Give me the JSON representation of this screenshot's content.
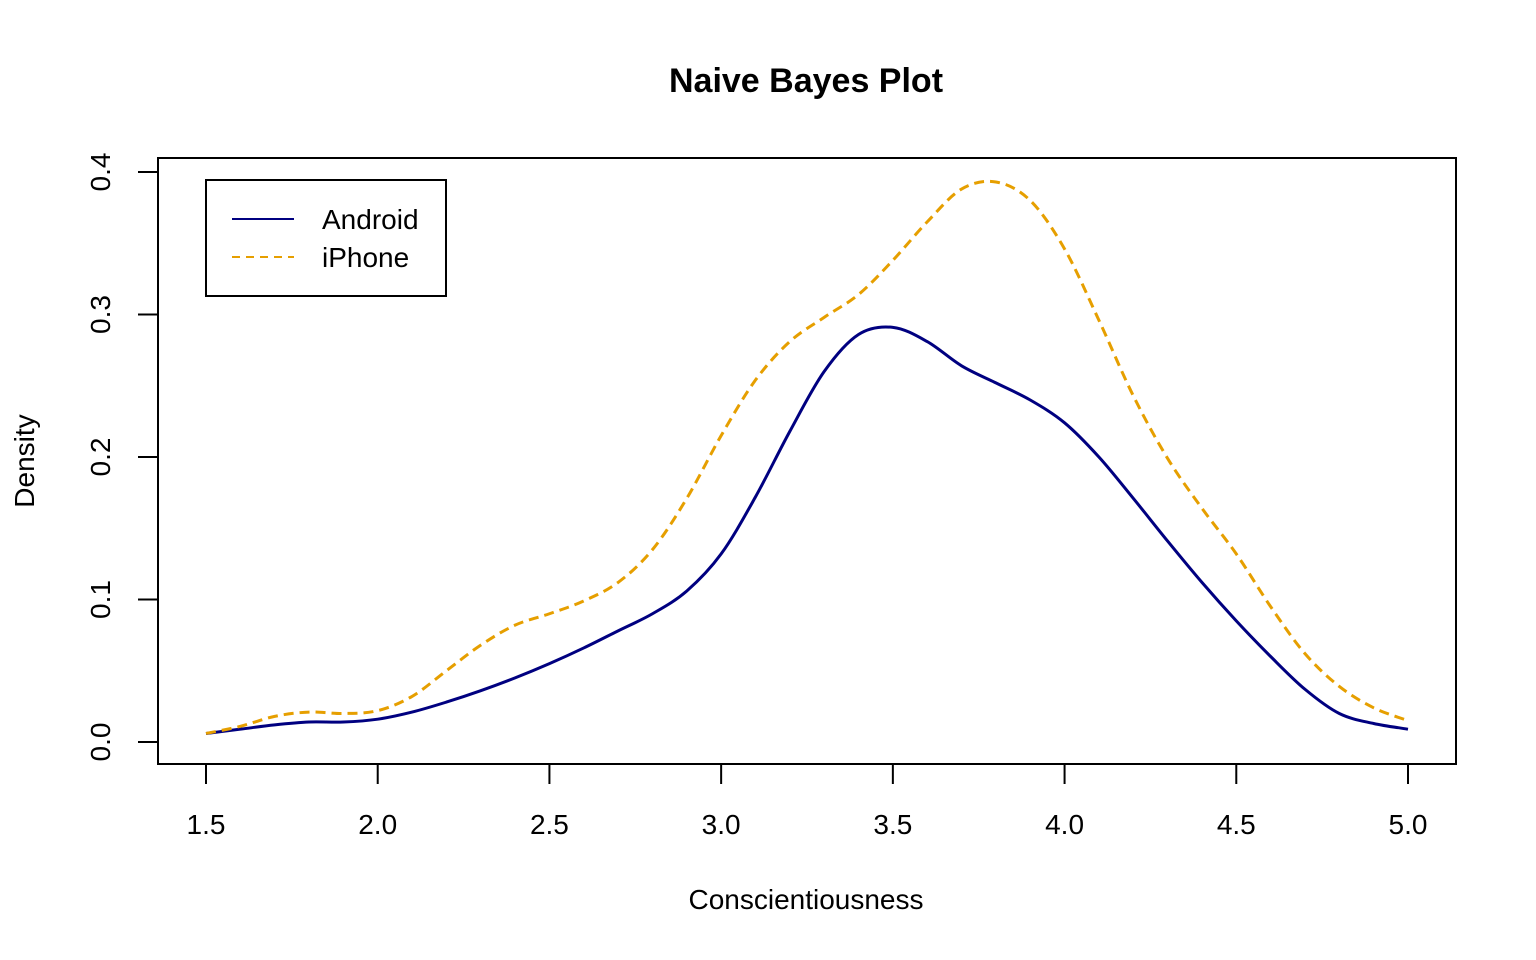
{
  "chart_data": {
    "type": "line",
    "title": "Naive Bayes Plot",
    "xlabel": "Conscientiousness",
    "ylabel": "Density",
    "xlim": [
      1.5,
      5.0
    ],
    "ylim": [
      0.0,
      0.4
    ],
    "xticks": [
      "1.5",
      "2.0",
      "2.5",
      "3.0",
      "3.5",
      "4.0",
      "4.5",
      "5.0"
    ],
    "yticks": [
      "0.0",
      "0.1",
      "0.2",
      "0.3",
      "0.4"
    ],
    "grid": false,
    "legend_position": "top-left",
    "series": [
      {
        "name": "Android",
        "color": "#000080",
        "style": "solid",
        "x": [
          1.5,
          1.6,
          1.7,
          1.8,
          1.9,
          2.0,
          2.1,
          2.2,
          2.3,
          2.4,
          2.5,
          2.6,
          2.7,
          2.8,
          2.9,
          3.0,
          3.1,
          3.2,
          3.3,
          3.4,
          3.5,
          3.6,
          3.7,
          3.8,
          3.9,
          4.0,
          4.1,
          4.2,
          4.3,
          4.4,
          4.5,
          4.6,
          4.7,
          4.8,
          4.9,
          5.0
        ],
        "y": [
          0.006,
          0.009,
          0.012,
          0.014,
          0.014,
          0.016,
          0.021,
          0.028,
          0.036,
          0.045,
          0.055,
          0.066,
          0.078,
          0.09,
          0.106,
          0.132,
          0.172,
          0.218,
          0.26,
          0.286,
          0.291,
          0.281,
          0.264,
          0.252,
          0.24,
          0.224,
          0.2,
          0.171,
          0.141,
          0.112,
          0.085,
          0.06,
          0.037,
          0.02,
          0.013,
          0.009
        ]
      },
      {
        "name": "iPhone",
        "color": "#E69F00",
        "style": "dashed",
        "x": [
          1.5,
          1.6,
          1.7,
          1.8,
          1.9,
          2.0,
          2.1,
          2.2,
          2.3,
          2.4,
          2.5,
          2.6,
          2.7,
          2.8,
          2.9,
          3.0,
          3.1,
          3.2,
          3.3,
          3.4,
          3.5,
          3.6,
          3.7,
          3.8,
          3.9,
          4.0,
          4.1,
          4.2,
          4.3,
          4.4,
          4.5,
          4.6,
          4.7,
          4.8,
          4.9,
          5.0
        ],
        "y": [
          0.006,
          0.011,
          0.018,
          0.021,
          0.02,
          0.022,
          0.032,
          0.05,
          0.068,
          0.082,
          0.09,
          0.099,
          0.112,
          0.135,
          0.171,
          0.215,
          0.254,
          0.281,
          0.298,
          0.314,
          0.338,
          0.365,
          0.388,
          0.393,
          0.38,
          0.346,
          0.296,
          0.243,
          0.199,
          0.164,
          0.132,
          0.095,
          0.062,
          0.039,
          0.024,
          0.015
        ]
      }
    ]
  }
}
